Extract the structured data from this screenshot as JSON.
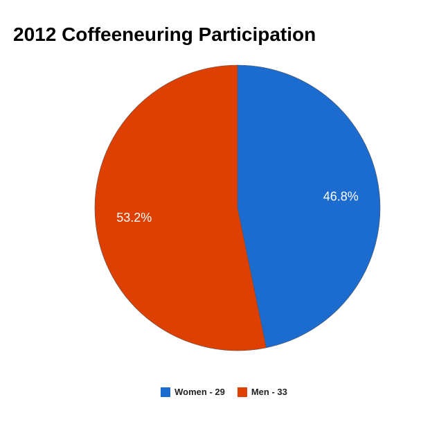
{
  "chart_data": {
    "type": "pie",
    "title": "2012 Coffeeneuring Participation",
    "slices": [
      {
        "label": "Women - 29",
        "value": 29,
        "percent_label": "46.8%",
        "color": "#1c6bcf"
      },
      {
        "label": "Men - 33",
        "value": 33,
        "percent_label": "53.2%",
        "color": "#dd4000"
      }
    ],
    "legend_position": "bottom",
    "start_angle": "12 o'clock, clockwise"
  }
}
